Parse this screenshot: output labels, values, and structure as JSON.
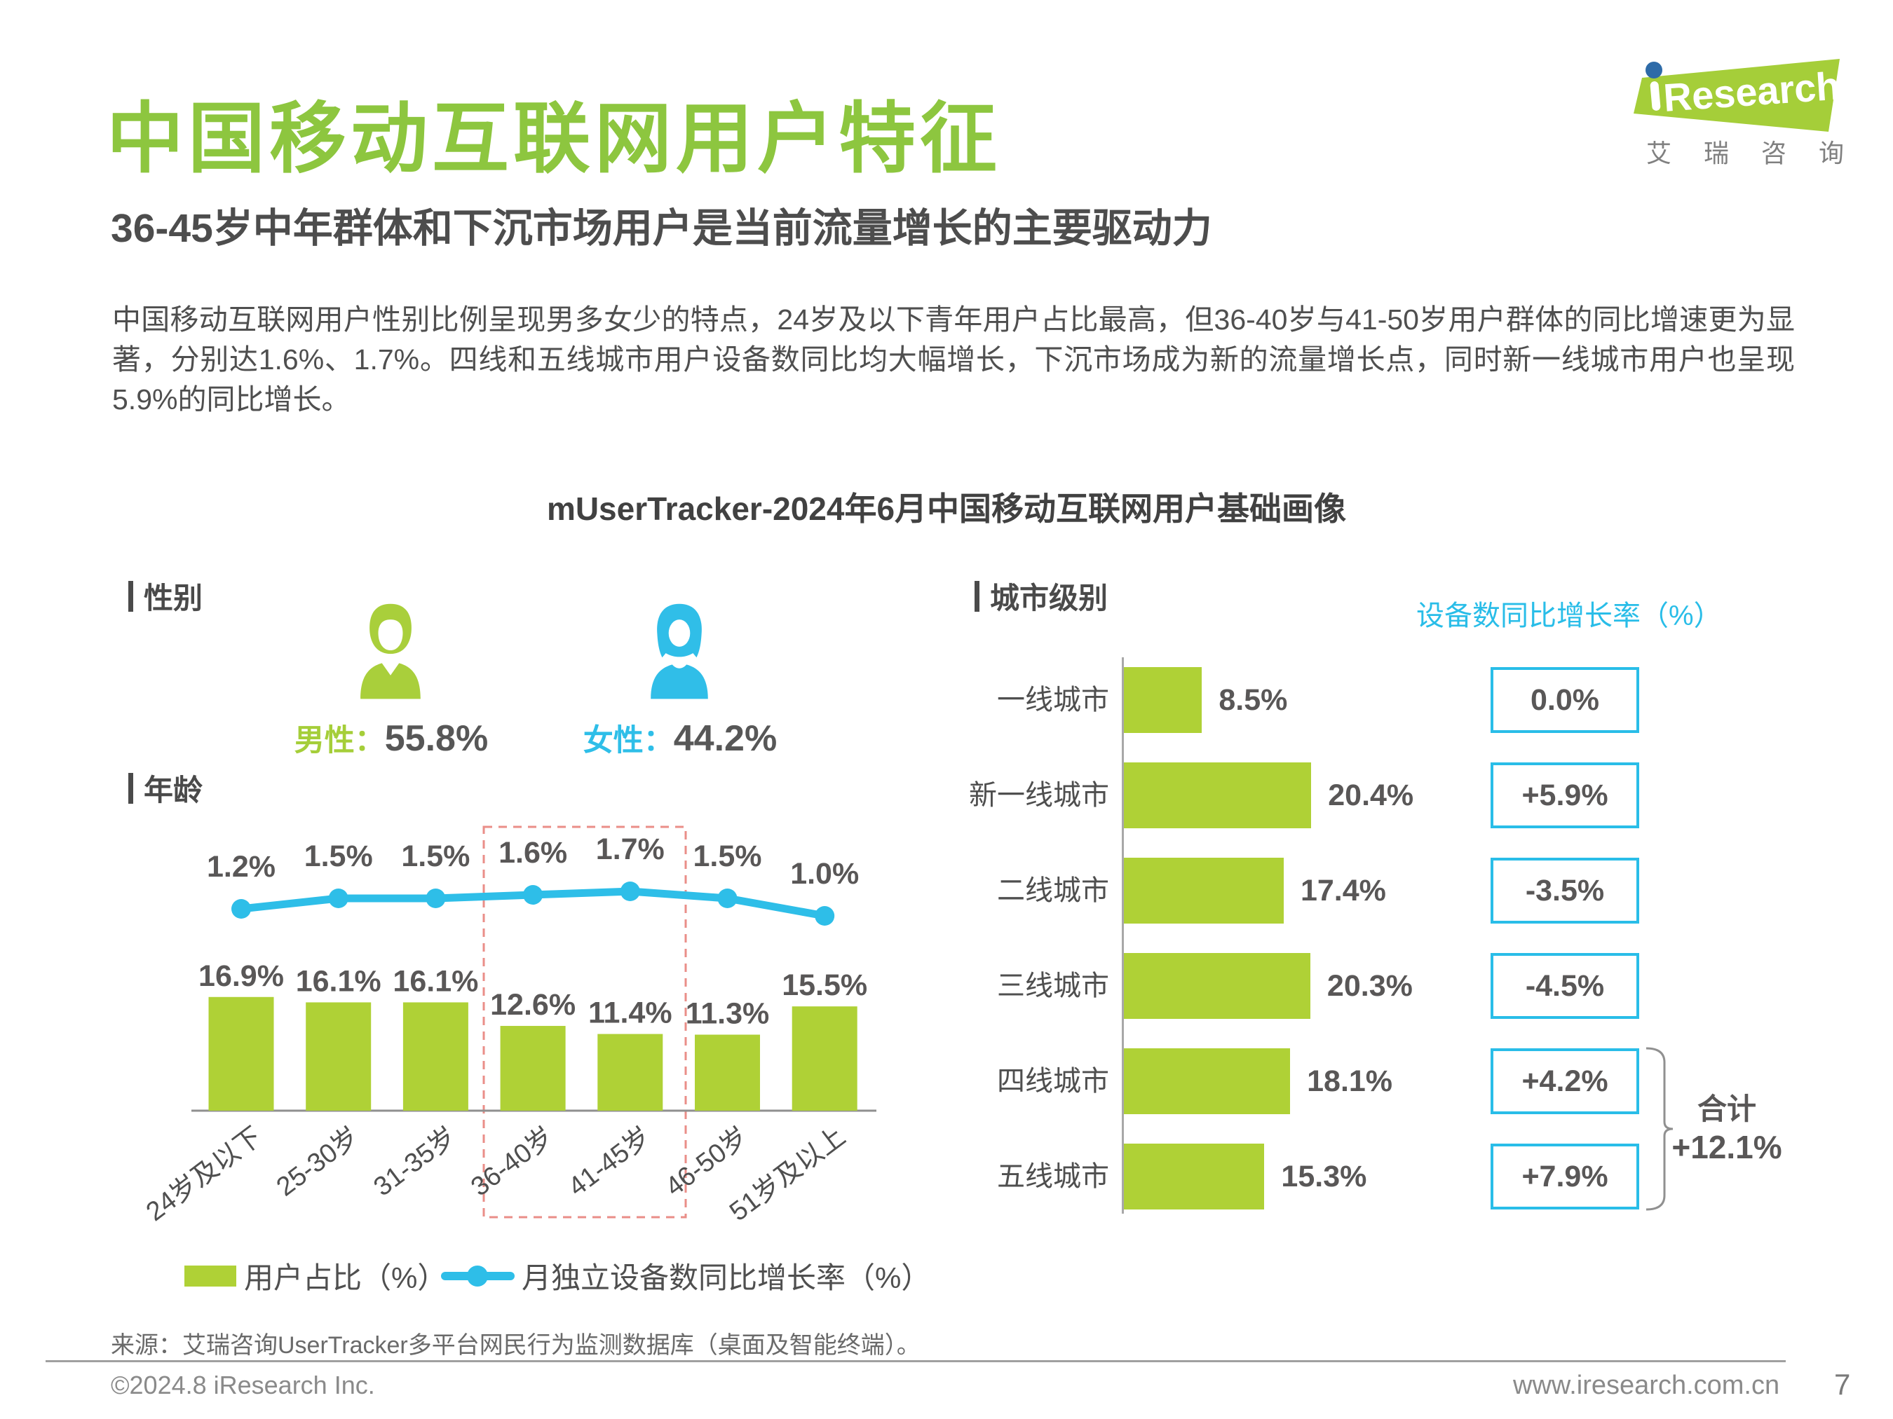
{
  "header": {
    "title": "中国移动互联网用户特征",
    "subtitle": "36-45岁中年群体和下沉市场用户是当前流量增长的主要驱动力",
    "paragraph": "中国移动互联网用户性别比例呈现男多女少的特点，24岁及以下青年用户占比最高，但36-40岁与41-50岁用户群体的同比增速更为显著，分别达1.6%、1.7%。四线和五线城市用户设备数同比均大幅增长，下沉市场成为新的流量增长点，同时新一线城市用户也呈现5.9%的同比增长。"
  },
  "logo": {
    "brand": "Research",
    "caption": "艾瑞咨询",
    "green": "#A5CE39",
    "dot_blue": "#2E6BA8"
  },
  "chart_title": "mUserTracker-2024年6月中国移动互联网用户基础画像",
  "sections": {
    "gender": "性别",
    "age": "年龄",
    "city": "城市级别"
  },
  "gender": {
    "male_label": "男性：",
    "male_value": "55.8%",
    "female_label": "女性：",
    "female_value": "44.2%"
  },
  "city_growth_header": "设备数同比增长率（%）",
  "footer": {
    "source": "来源：艾瑞咨询UserTracker多平台网民行为监测数据库（桌面及智能终端）。",
    "copyright": "©2024.8 iResearch Inc.",
    "website": "www.iresearch.com.cn",
    "page_number": "7"
  },
  "colors": {
    "bar_green": "#AFD136",
    "title_green": "#8DC63F",
    "line_cyan": "#2EBEE8",
    "box_cyan": "#29BDE8",
    "text_dark": "#595757",
    "highlight_dashed": "#EA8E88"
  },
  "chart_data": [
    {
      "type": "bar",
      "subtype": "bar-line-combo",
      "section": "年龄",
      "categories": [
        "24岁及以下",
        "25-30岁",
        "31-35岁",
        "36-40岁",
        "41-45岁",
        "46-50岁",
        "51岁及以上"
      ],
      "series": [
        {
          "name": "用户占比（%）",
          "type": "bar",
          "color": "#AFD136",
          "values": [
            16.9,
            16.1,
            16.1,
            12.6,
            11.4,
            11.3,
            15.5
          ]
        },
        {
          "name": "月独立设备数同比增长率（%）",
          "type": "line",
          "color": "#2EBEE8",
          "values": [
            1.2,
            1.5,
            1.5,
            1.6,
            1.7,
            1.5,
            1.0
          ]
        }
      ],
      "value_suffix": "%",
      "highlighted_categories": [
        "36-40岁",
        "41-45岁"
      ],
      "legend_position": "bottom",
      "grid": false
    },
    {
      "type": "bar",
      "orientation": "horizontal",
      "section": "城市级别",
      "categories": [
        "一线城市",
        "新一线城市",
        "二线城市",
        "三线城市",
        "四线城市",
        "五线城市"
      ],
      "series": [
        {
          "name": "用户占比（%）",
          "type": "bar",
          "color": "#AFD136",
          "values": [
            8.5,
            20.4,
            17.4,
            20.3,
            18.1,
            15.3
          ]
        }
      ],
      "value_suffix": "%",
      "growth_column": {
        "header": "设备数同比增长率（%）",
        "box_border_color": "#29BDE8",
        "values": [
          "0.0%",
          "+5.9%",
          "-3.5%",
          "-4.5%",
          "+4.2%",
          "+7.9%"
        ]
      },
      "total": {
        "label": "合计",
        "value": "+12.1%",
        "applies_to": [
          "四线城市",
          "五线城市"
        ]
      },
      "grid": false
    }
  ]
}
